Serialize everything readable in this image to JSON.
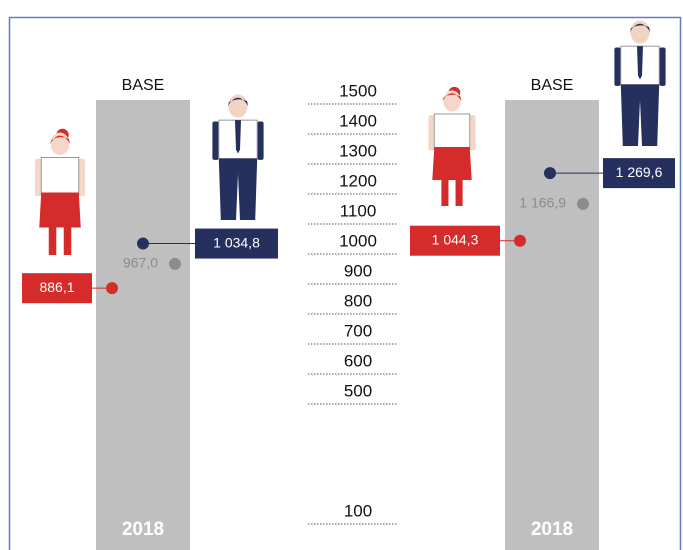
{
  "chart_data": {
    "type": "dot",
    "ylim": [
      100,
      1500
    ],
    "yticks": [
      1500,
      1400,
      1300,
      1200,
      1100,
      1000,
      900,
      800,
      700,
      600,
      500,
      100
    ],
    "colors": [
      "#d52b2b",
      "#8c8c8c",
      "#26305e"
    ],
    "panels": [
      {
        "label": "BASE",
        "year": "2018",
        "values": [
          886.1,
          967.0,
          1034.8
        ],
        "value_labels": [
          "886,1",
          "967,0",
          "1 034,8"
        ]
      },
      {
        "label": "BASE",
        "year": "2018",
        "values": [
          1044.3,
          1166.9,
          1269.6
        ],
        "value_labels": [
          "1 044,3",
          "1 166,9",
          "1 269,6"
        ]
      }
    ]
  }
}
